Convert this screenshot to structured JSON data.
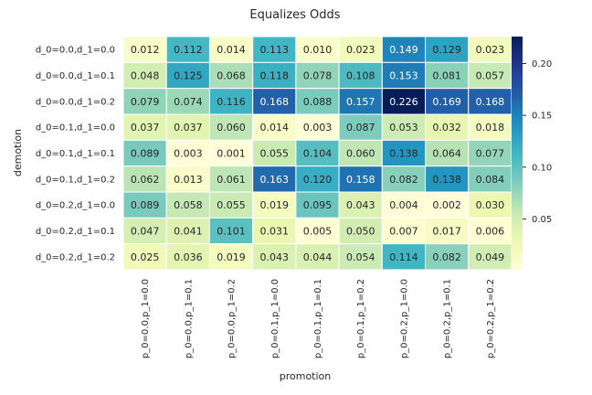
{
  "chart_data": {
    "type": "heatmap",
    "title": "Equalizes Odds",
    "xlabel": "promotion",
    "ylabel": "demotion",
    "x_categories": [
      "p_0=0.0,p_1=0.0",
      "p_0=0.0,p_1=0.1",
      "p_0=0.0,p_1=0.2",
      "p_0=0.1,p_1=0.0",
      "p_0=0.1,p_1=0.1",
      "p_0=0.1,p_1=0.2",
      "p_0=0.2,p_1=0.0",
      "p_0=0.2,p_1=0.1",
      "p_0=0.2,p_1=0.2"
    ],
    "y_categories": [
      "d_0=0.0,d_1=0.0",
      "d_0=0.0,d_1=0.1",
      "d_0=0.0,d_1=0.2",
      "d_0=0.1,d_1=0.0",
      "d_0=0.1,d_1=0.1",
      "d_0=0.1,d_1=0.2",
      "d_0=0.2,d_1=0.0",
      "d_0=0.2,d_1=0.1",
      "d_0=0.2,d_1=0.2"
    ],
    "values": [
      [
        0.012,
        0.112,
        0.014,
        0.113,
        0.01,
        0.023,
        0.149,
        0.129,
        0.023
      ],
      [
        0.048,
        0.125,
        0.068,
        0.118,
        0.078,
        0.108,
        0.153,
        0.081,
        0.057
      ],
      [
        0.079,
        0.074,
        0.116,
        0.168,
        0.088,
        0.157,
        0.226,
        0.169,
        0.168
      ],
      [
        0.037,
        0.037,
        0.06,
        0.014,
        0.003,
        0.087,
        0.053,
        0.032,
        0.018
      ],
      [
        0.089,
        0.003,
        0.001,
        0.055,
        0.104,
        0.06,
        0.138,
        0.064,
        0.077
      ],
      [
        0.062,
        0.013,
        0.061,
        0.163,
        0.12,
        0.158,
        0.082,
        0.138,
        0.084
      ],
      [
        0.089,
        0.058,
        0.055,
        0.019,
        0.095,
        0.043,
        0.004,
        0.002,
        0.03
      ],
      [
        0.047,
        0.041,
        0.101,
        0.031,
        0.005,
        0.05,
        0.007,
        0.017,
        0.006
      ],
      [
        0.025,
        0.036,
        0.019,
        0.043,
        0.044,
        0.054,
        0.114,
        0.082,
        0.049
      ]
    ],
    "colormap": "YlGnBu",
    "vmin": 0.001,
    "vmax": 0.226,
    "colorbar_ticks": [
      0.05,
      0.1,
      0.15,
      0.2
    ],
    "colorbar_tick_labels": [
      "0.05",
      "0.10",
      "0.15",
      "0.20"
    ],
    "annotation_text_colors": {
      "light_cell": "#262626",
      "dark_cell": "#ffffff"
    }
  }
}
